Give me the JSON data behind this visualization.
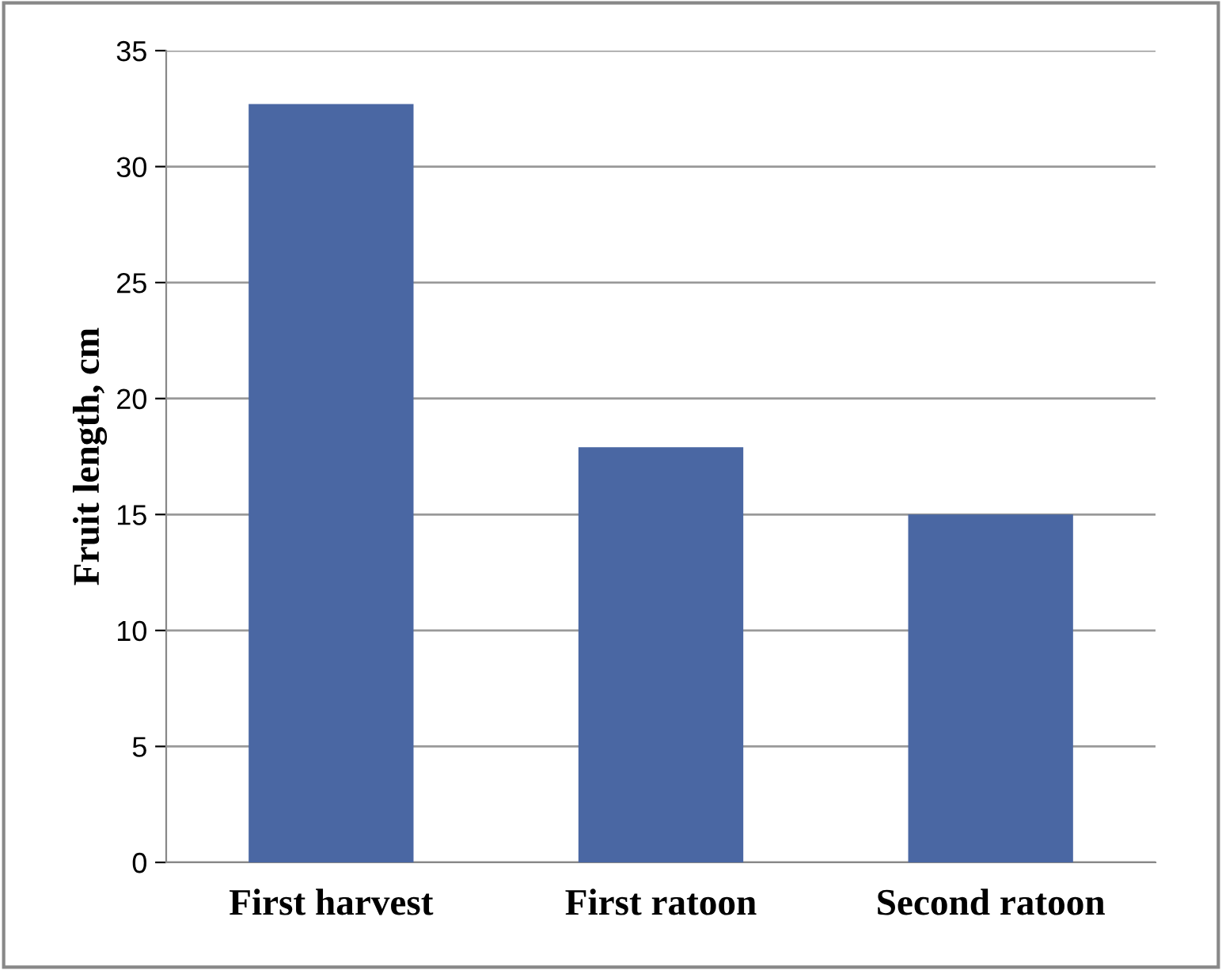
{
  "chart_data": {
    "type": "bar",
    "ylabel": "Fruit length, cm",
    "categories": [
      "First harvest",
      "First ratoon",
      "Second ratoon"
    ],
    "values": [
      32.7,
      17.9,
      15.0
    ],
    "color": "#4a67a3",
    "ylim": [
      0,
      35
    ],
    "yticks": [
      0,
      5,
      10,
      15,
      20,
      25,
      30,
      35
    ],
    "grid": "y",
    "legend": false
  }
}
